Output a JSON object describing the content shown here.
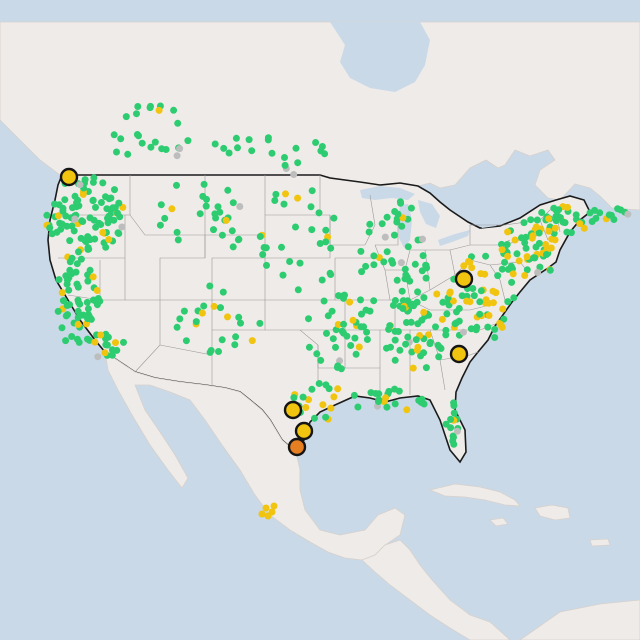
{
  "map": {
    "colors": {
      "water": "#c9d9e8",
      "land": "#efebe8",
      "us_border": "#1b1b1b",
      "state_lines": "#9a9a9a",
      "status_green": "#2ecc71",
      "status_yellow": "#f1c40f",
      "status_gray": "#bdbdbd",
      "status_orange": "#e67e22"
    },
    "legend": [],
    "markers": [
      {
        "status": "yellow",
        "size": "large"
      },
      {
        "status": "yellow",
        "size": "large"
      },
      {
        "status": "yellow",
        "size": "large"
      },
      {
        "status": "yellow",
        "size": "large"
      },
      {
        "status": "yellow",
        "size": "large"
      },
      {
        "status": "orange",
        "size": "large"
      }
    ]
  }
}
